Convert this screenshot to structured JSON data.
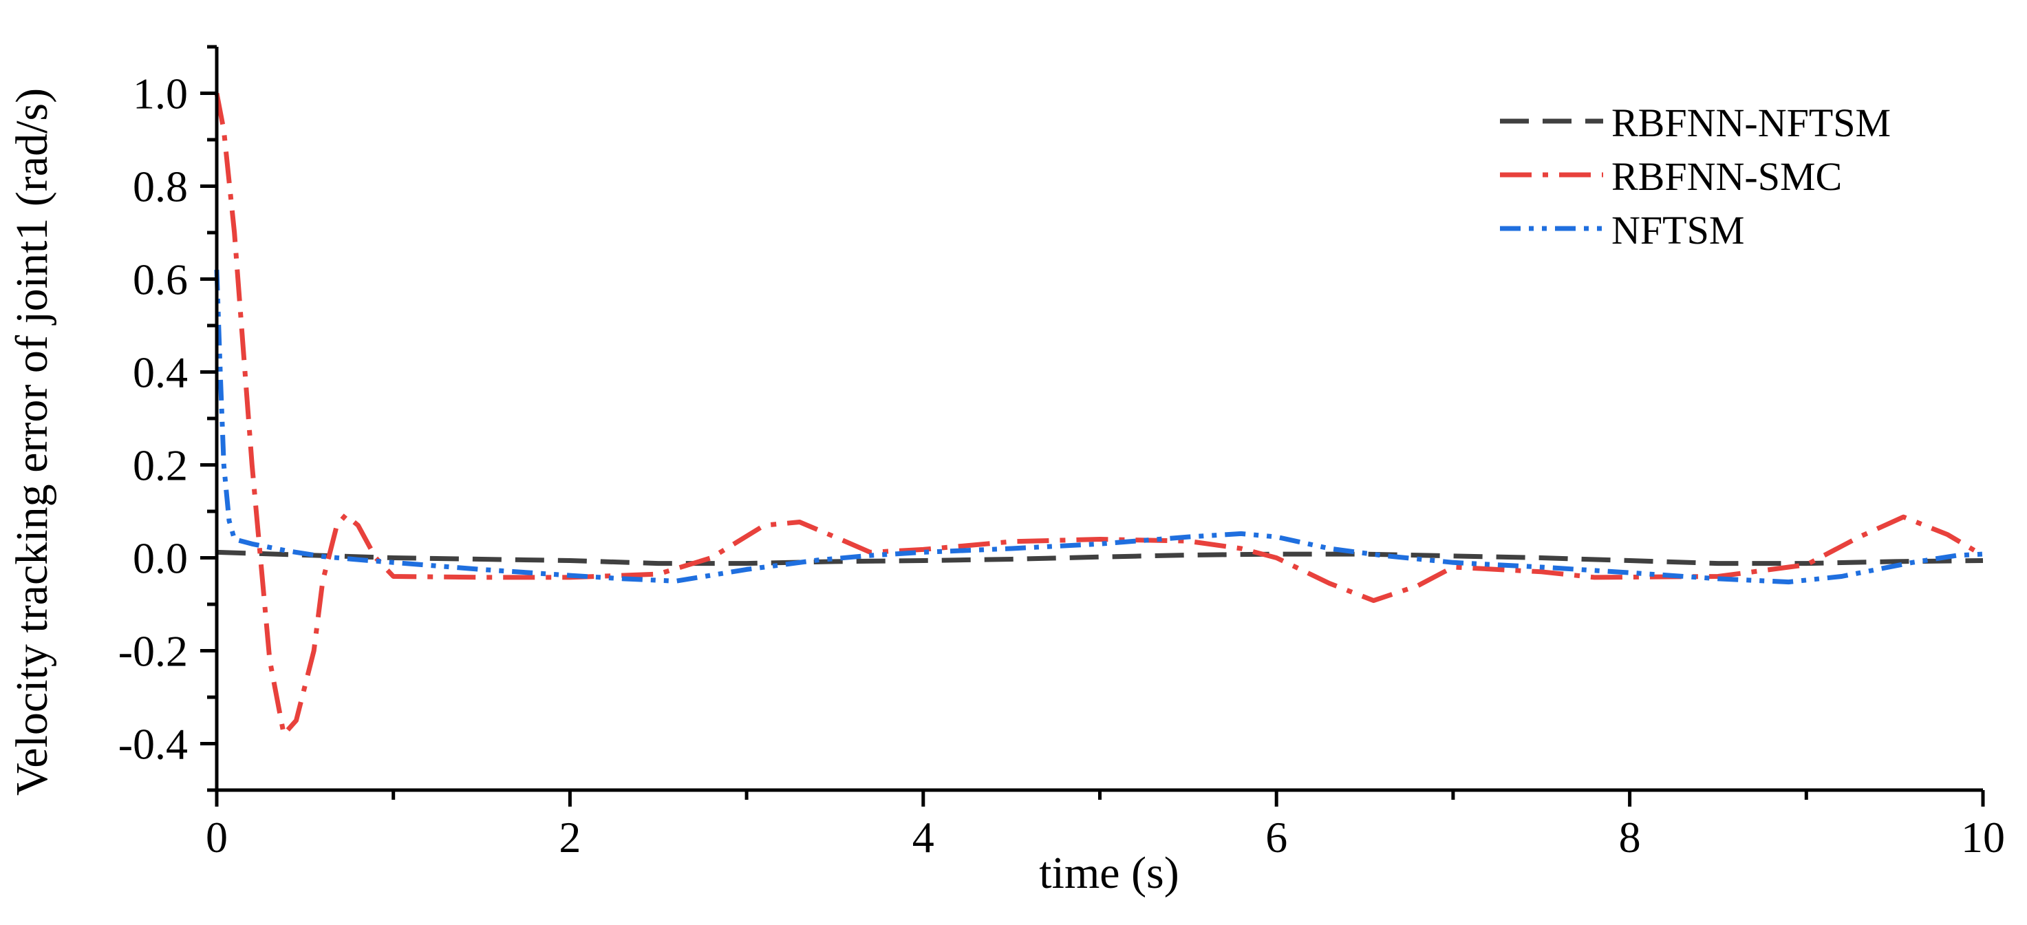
{
  "chart_data": {
    "type": "line",
    "title": "",
    "xlabel": "time (s)",
    "ylabel": "Velocity tracking error of joint1 (rad/s)",
    "xlim": [
      0,
      10
    ],
    "ylim": [
      -0.5,
      1.1
    ],
    "xticks": [
      0,
      2,
      4,
      6,
      8,
      10
    ],
    "xtick_labels": [
      "0",
      "2",
      "4",
      "6",
      "8",
      "10"
    ],
    "xminor": [
      1,
      3,
      5,
      7,
      9
    ],
    "yticks": [
      -0.4,
      -0.2,
      0.0,
      0.2,
      0.4,
      0.6,
      0.8,
      1.0
    ],
    "ytick_labels": [
      "-0.4",
      "-0.2",
      "0.0",
      "0.2",
      "0.4",
      "0.6",
      "0.8",
      "1.0"
    ],
    "yminor": [
      -0.5,
      -0.3,
      -0.1,
      0.1,
      0.3,
      0.5,
      0.7,
      0.9,
      1.1
    ],
    "grid": false,
    "legend_position": "top-right",
    "series": [
      {
        "name": "RBFNN-NFTSM",
        "color": "#404040",
        "dash": "long-dash",
        "points": [
          [
            0,
            0.012
          ],
          [
            0.5,
            0.006
          ],
          [
            1.0,
            0.0
          ],
          [
            1.5,
            -0.003
          ],
          [
            2.0,
            -0.006
          ],
          [
            2.5,
            -0.012
          ],
          [
            3.0,
            -0.012
          ],
          [
            3.5,
            -0.008
          ],
          [
            4.0,
            -0.006
          ],
          [
            4.5,
            -0.003
          ],
          [
            5.0,
            0.002
          ],
          [
            5.5,
            0.006
          ],
          [
            6.0,
            0.008
          ],
          [
            6.5,
            0.008
          ],
          [
            7.0,
            0.004
          ],
          [
            7.5,
            0.0
          ],
          [
            8.0,
            -0.006
          ],
          [
            8.5,
            -0.012
          ],
          [
            9.0,
            -0.012
          ],
          [
            9.5,
            -0.008
          ],
          [
            10.0,
            -0.006
          ]
        ]
      },
      {
        "name": "RBFNN-SMC",
        "color": "#e8413c",
        "dash": "dash-dot",
        "points": [
          [
            0,
            1.0
          ],
          [
            0.04,
            0.92
          ],
          [
            0.1,
            0.7
          ],
          [
            0.2,
            0.2
          ],
          [
            0.3,
            -0.22
          ],
          [
            0.38,
            -0.38
          ],
          [
            0.45,
            -0.35
          ],
          [
            0.55,
            -0.2
          ],
          [
            0.6,
            -0.05
          ],
          [
            0.68,
            0.07
          ],
          [
            0.73,
            0.092
          ],
          [
            0.8,
            0.07
          ],
          [
            0.9,
            0.0
          ],
          [
            1.0,
            -0.04
          ],
          [
            1.5,
            -0.042
          ],
          [
            2.0,
            -0.042
          ],
          [
            2.5,
            -0.035
          ],
          [
            2.8,
            0.0
          ],
          [
            3.1,
            0.07
          ],
          [
            3.3,
            0.077
          ],
          [
            3.5,
            0.045
          ],
          [
            3.7,
            0.012
          ],
          [
            4.0,
            0.018
          ],
          [
            4.5,
            0.035
          ],
          [
            5.0,
            0.04
          ],
          [
            5.5,
            0.036
          ],
          [
            5.8,
            0.02
          ],
          [
            6.0,
            0.0
          ],
          [
            6.3,
            -0.055
          ],
          [
            6.55,
            -0.092
          ],
          [
            6.8,
            -0.06
          ],
          [
            7.0,
            -0.02
          ],
          [
            7.5,
            -0.03
          ],
          [
            7.8,
            -0.042
          ],
          [
            8.5,
            -0.04
          ],
          [
            9.0,
            -0.015
          ],
          [
            9.3,
            0.045
          ],
          [
            9.55,
            0.088
          ],
          [
            9.8,
            0.05
          ],
          [
            10.0,
            0.005
          ]
        ]
      },
      {
        "name": "NFTSM",
        "color": "#1f6fdf",
        "dash": "dash-dot-dot",
        "points": [
          [
            0,
            0.62
          ],
          [
            0.02,
            0.4
          ],
          [
            0.04,
            0.2
          ],
          [
            0.07,
            0.08
          ],
          [
            0.1,
            0.04
          ],
          [
            0.2,
            0.03
          ],
          [
            0.4,
            0.015
          ],
          [
            0.6,
            0.003
          ],
          [
            0.8,
            -0.004
          ],
          [
            1.0,
            -0.01
          ],
          [
            1.5,
            -0.025
          ],
          [
            2.0,
            -0.038
          ],
          [
            2.3,
            -0.045
          ],
          [
            2.6,
            -0.05
          ],
          [
            3.0,
            -0.025
          ],
          [
            3.4,
            -0.005
          ],
          [
            3.7,
            0.005
          ],
          [
            4.0,
            0.012
          ],
          [
            4.5,
            0.02
          ],
          [
            5.0,
            0.03
          ],
          [
            5.5,
            0.045
          ],
          [
            5.8,
            0.052
          ],
          [
            6.0,
            0.045
          ],
          [
            6.3,
            0.02
          ],
          [
            6.6,
            0.005
          ],
          [
            7.0,
            -0.01
          ],
          [
            7.5,
            -0.02
          ],
          [
            8.0,
            -0.032
          ],
          [
            8.5,
            -0.045
          ],
          [
            8.9,
            -0.052
          ],
          [
            9.2,
            -0.04
          ],
          [
            9.6,
            -0.01
          ],
          [
            9.85,
            0.005
          ],
          [
            10.0,
            0.008
          ]
        ]
      }
    ]
  }
}
